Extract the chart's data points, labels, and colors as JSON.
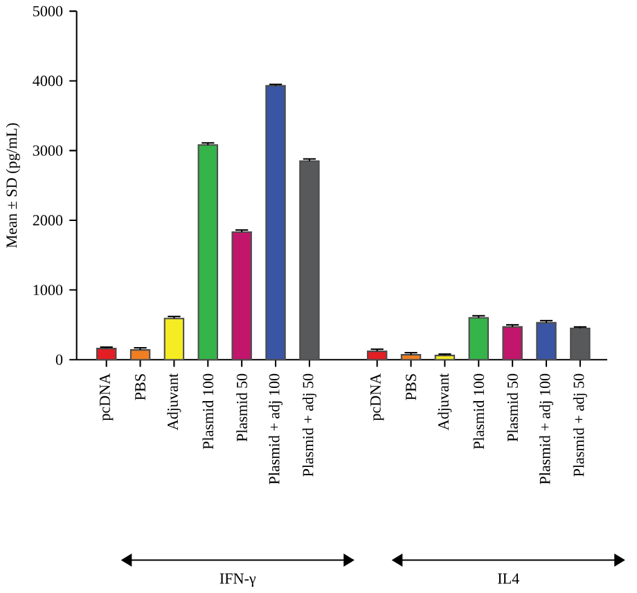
{
  "chart_data": {
    "type": "bar",
    "ylabel": "Mean ± SD (pg/mL)",
    "categories": [
      "pcDNA",
      "PBS",
      "Adjuvant",
      "Plasmid 100",
      "Plasmid 50",
      "Plasmid + adj 100",
      "Plasmid + adj 50",
      null,
      "pcDNA",
      "PBS",
      "Adjuvant",
      "Plasmid 100",
      "Plasmid 50",
      "Plasmid + adj 100",
      "Plasmid + adj 50"
    ],
    "values": [
      160,
      140,
      590,
      3080,
      1830,
      3930,
      2850,
      null,
      120,
      70,
      60,
      600,
      470,
      530,
      450
    ],
    "errors": [
      20,
      30,
      30,
      30,
      30,
      20,
      30,
      null,
      30,
      30,
      20,
      30,
      30,
      30,
      20
    ],
    "colors": [
      "#e31e24",
      "#f07f22",
      "#f5ec23",
      "#35b44a",
      "#c1166b",
      "#3a55a4",
      "#58595b",
      null,
      "#e31e24",
      "#f07f22",
      "#f5ec23",
      "#35b44a",
      "#c1166b",
      "#3a55a4",
      "#58595b"
    ],
    "ylim": [
      0,
      5000
    ],
    "yticks": [
      0,
      1000,
      2000,
      3000,
      4000,
      5000
    ],
    "annotations": [
      "IFN-γ",
      "IL4"
    ]
  }
}
